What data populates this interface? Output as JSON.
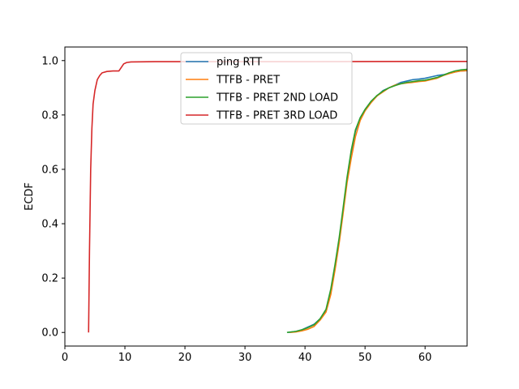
{
  "chart_data": {
    "type": "line",
    "title": "",
    "xlabel": "",
    "ylabel": "ECDF",
    "xlim": [
      0,
      67
    ],
    "ylim": [
      -0.05,
      1.05
    ],
    "xticks": [
      0,
      10,
      20,
      30,
      40,
      50,
      60
    ],
    "yticks": [
      0.0,
      0.2,
      0.4,
      0.6,
      0.8,
      1.0
    ],
    "xtick_labels": [
      "0",
      "10",
      "20",
      "30",
      "40",
      "50",
      "60"
    ],
    "ytick_labels": [
      "0.0",
      "0.2",
      "0.4",
      "0.6",
      "0.8",
      "1.0"
    ],
    "grid": false,
    "legend_position": "top-center",
    "series": [
      {
        "name": "ping RTT",
        "color": "#1f77b4",
        "points": [
          [
            37.2,
            0
          ],
          [
            38.5,
            0.004
          ],
          [
            39.5,
            0.01
          ],
          [
            40.5,
            0.02
          ],
          [
            41.5,
            0.03
          ],
          [
            42.5,
            0.05
          ],
          [
            43.5,
            0.08
          ],
          [
            44.3,
            0.15
          ],
          [
            45,
            0.24
          ],
          [
            45.7,
            0.34
          ],
          [
            46.3,
            0.44
          ],
          [
            47,
            0.56
          ],
          [
            47.7,
            0.66
          ],
          [
            48.4,
            0.74
          ],
          [
            49.2,
            0.79
          ],
          [
            50,
            0.82
          ],
          [
            51,
            0.85
          ],
          [
            52,
            0.87
          ],
          [
            53,
            0.89
          ],
          [
            54,
            0.9
          ],
          [
            55,
            0.91
          ],
          [
            56,
            0.92
          ],
          [
            57,
            0.925
          ],
          [
            58,
            0.93
          ],
          [
            59,
            0.932
          ],
          [
            60,
            0.935
          ],
          [
            61,
            0.94
          ],
          [
            62,
            0.945
          ],
          [
            63,
            0.948
          ],
          [
            64,
            0.953
          ],
          [
            65,
            0.958
          ],
          [
            66,
            0.962
          ],
          [
            67,
            0.963
          ]
        ]
      },
      {
        "name": "TTFB - PRET",
        "color": "#ff7f0e",
        "points": [
          [
            37.5,
            0
          ],
          [
            38.5,
            0.002
          ],
          [
            39.5,
            0.006
          ],
          [
            40.5,
            0.012
          ],
          [
            41.5,
            0.022
          ],
          [
            42.5,
            0.045
          ],
          [
            43.5,
            0.075
          ],
          [
            44.3,
            0.14
          ],
          [
            45,
            0.23
          ],
          [
            45.7,
            0.33
          ],
          [
            46.3,
            0.43
          ],
          [
            47,
            0.55
          ],
          [
            47.7,
            0.64
          ],
          [
            48.4,
            0.72
          ],
          [
            49.2,
            0.78
          ],
          [
            50,
            0.815
          ],
          [
            51,
            0.845
          ],
          [
            52,
            0.87
          ],
          [
            53,
            0.885
          ],
          [
            54,
            0.9
          ],
          [
            55,
            0.91
          ],
          [
            56,
            0.915
          ],
          [
            57,
            0.918
          ],
          [
            58,
            0.92
          ],
          [
            59,
            0.923
          ],
          [
            60,
            0.925
          ],
          [
            61,
            0.93
          ],
          [
            62,
            0.935
          ],
          [
            63,
            0.945
          ],
          [
            64,
            0.952
          ],
          [
            65,
            0.958
          ],
          [
            66,
            0.962
          ],
          [
            67,
            0.963
          ]
        ]
      },
      {
        "name": "TTFB - PRET 2ND LOAD",
        "color": "#2ca02c",
        "points": [
          [
            37,
            0
          ],
          [
            38.5,
            0.004
          ],
          [
            39.5,
            0.01
          ],
          [
            40.5,
            0.018
          ],
          [
            41.5,
            0.028
          ],
          [
            42.5,
            0.05
          ],
          [
            43.5,
            0.085
          ],
          [
            44.3,
            0.16
          ],
          [
            45,
            0.25
          ],
          [
            45.7,
            0.35
          ],
          [
            46.3,
            0.45
          ],
          [
            47,
            0.57
          ],
          [
            47.7,
            0.67
          ],
          [
            48.4,
            0.745
          ],
          [
            49.2,
            0.79
          ],
          [
            50,
            0.82
          ],
          [
            51,
            0.85
          ],
          [
            52,
            0.872
          ],
          [
            53,
            0.888
          ],
          [
            54,
            0.9
          ],
          [
            55,
            0.908
          ],
          [
            56,
            0.915
          ],
          [
            57,
            0.92
          ],
          [
            58,
            0.923
          ],
          [
            59,
            0.926
          ],
          [
            60,
            0.928
          ],
          [
            61,
            0.933
          ],
          [
            62,
            0.938
          ],
          [
            63,
            0.946
          ],
          [
            64,
            0.955
          ],
          [
            65,
            0.962
          ],
          [
            66,
            0.966
          ],
          [
            67,
            0.968
          ]
        ]
      },
      {
        "name": "TTFB - PRET 3RD LOAD",
        "color": "#d62728",
        "points": [
          [
            3.95,
            0
          ],
          [
            4.1,
            0.3
          ],
          [
            4.3,
            0.6
          ],
          [
            4.5,
            0.75
          ],
          [
            4.7,
            0.84
          ],
          [
            5,
            0.89
          ],
          [
            5.4,
            0.93
          ],
          [
            5.8,
            0.945
          ],
          [
            6.2,
            0.955
          ],
          [
            7,
            0.96
          ],
          [
            8,
            0.962
          ],
          [
            9,
            0.962
          ],
          [
            9.4,
            0.975
          ],
          [
            9.8,
            0.988
          ],
          [
            10.3,
            0.993
          ],
          [
            11,
            0.995
          ],
          [
            15,
            0.996
          ],
          [
            30,
            0.996
          ],
          [
            67,
            0.997
          ]
        ]
      }
    ]
  }
}
